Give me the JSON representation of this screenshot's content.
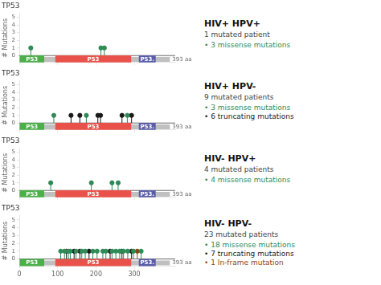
{
  "chart_data": [
    {
      "type": "lollipop",
      "title": "TP53",
      "ylabel": "# Mutations",
      "xlim": [
        0,
        407
      ],
      "xticks": [
        0,
        100,
        200,
        300
      ],
      "ylim": [
        -0.9,
        5.5
      ],
      "yticks": [
        0,
        1,
        2,
        3,
        4,
        5
      ],
      "grid": false,
      "tick_labels": "y",
      "hline": 0,
      "protein": {
        "start": 0,
        "end": 393,
        "y": -0.5,
        "color": "#c0c0c0",
        "label": "393 aa",
        "domains": [
          {
            "start": 1,
            "end": 65,
            "color": "#4daf4a",
            "label": "P53",
            "label_color": "white"
          },
          {
            "start": 94,
            "end": 292,
            "color": "#e8524a",
            "label": "P53",
            "label_color": "white"
          },
          {
            "start": 312,
            "end": 356,
            "color": "#5b5ea6",
            "label": "P53.",
            "label_color": "white"
          }
        ]
      },
      "series": [
        {
          "color": "#2e8b57",
          "marker": "circle",
          "x": [
            30,
            213,
            222
          ],
          "values": [
            1.0,
            1.0,
            1.0
          ]
        }
      ],
      "group": "HIV+ HPV+",
      "subtitle": "1 mutated patient",
      "annotations": [
        {
          "text": "• 3 missense mutations",
          "color": "#2e8b57"
        }
      ]
    },
    {
      "type": "lollipop",
      "title": "TP53",
      "ylabel": "# Mutations",
      "xlim": [
        0,
        407
      ],
      "xticks": [
        0,
        100,
        200,
        300
      ],
      "ylim": [
        -0.9,
        5.5
      ],
      "yticks": [
        0,
        1,
        2,
        3,
        4,
        5
      ],
      "grid": false,
      "tick_labels": "y",
      "hline": 0,
      "protein": {
        "start": 0,
        "end": 393,
        "y": -0.5,
        "color": "#c0c0c0",
        "label": "393 aa",
        "domains": [
          {
            "start": 1,
            "end": 65,
            "color": "#4daf4a",
            "label": "P53",
            "label_color": "white"
          },
          {
            "start": 94,
            "end": 292,
            "color": "#e8524a",
            "label": "P53",
            "label_color": "white"
          },
          {
            "start": 312,
            "end": 356,
            "color": "#5b5ea6",
            "label": "P53.",
            "label_color": "white"
          }
        ]
      },
      "series": [
        {
          "color": "#2e8b57",
          "marker": "circle",
          "x": [
            90,
            175,
            282
          ],
          "values": [
            1.0,
            1.0,
            1.0
          ]
        },
        {
          "color": "#1a1a1a",
          "marker": "circle",
          "x": [
            135,
            158,
            205,
            212,
            268,
            293
          ],
          "values": [
            1.0,
            1.0,
            1.0,
            1.0,
            1.0,
            1.0
          ]
        }
      ],
      "group": "HIV+ HPV-",
      "subtitle": "9 mutated patients",
      "annotations": [
        {
          "text": "• 3 missense mutations",
          "color": "#2e8b57"
        },
        {
          "text": "• 6 truncating mutations",
          "color": "#1a1a1a"
        }
      ]
    },
    {
      "type": "lollipop",
      "title": "TP53",
      "ylabel": "# Mutations",
      "xlim": [
        0,
        407
      ],
      "xticks": [
        0,
        100,
        200,
        300
      ],
      "ylim": [
        -0.9,
        5.5
      ],
      "yticks": [
        0,
        1,
        2,
        3,
        4,
        5
      ],
      "grid": false,
      "tick_labels": "y",
      "hline": 0,
      "protein": {
        "start": 0,
        "end": 393,
        "y": -0.5,
        "color": "#c0c0c0",
        "label": "393 aa",
        "domains": [
          {
            "start": 1,
            "end": 65,
            "color": "#4daf4a",
            "label": "P53",
            "label_color": "white"
          },
          {
            "start": 94,
            "end": 292,
            "color": "#e8524a",
            "label": "P53",
            "label_color": "white"
          },
          {
            "start": 312,
            "end": 356,
            "color": "#5b5ea6",
            "label": "P53.",
            "label_color": "white"
          }
        ]
      },
      "series": [
        {
          "color": "#2e8b57",
          "marker": "circle",
          "x": [
            82,
            188,
            242,
            258
          ],
          "values": [
            1.0,
            1.0,
            1.0,
            1.0
          ]
        }
      ],
      "group": "HIV- HPV+",
      "subtitle": "4 mutated patients",
      "annotations": [
        {
          "text": "• 4 missense mutations",
          "color": "#2e8b57"
        }
      ]
    },
    {
      "type": "lollipop",
      "title": "TP53",
      "ylabel": "# Mutations",
      "xlim": [
        0,
        407
      ],
      "xticks": [
        0,
        100,
        200,
        300
      ],
      "ylim": [
        -0.9,
        5.5
      ],
      "yticks": [
        0,
        1,
        2,
        3,
        4,
        5
      ],
      "grid": false,
      "hline": 0,
      "protein": {
        "start": 0,
        "end": 393,
        "y": -0.5,
        "color": "#c0c0c0",
        "label": "393 aa",
        "domains": [
          {
            "start": 1,
            "end": 65,
            "color": "#4daf4a",
            "label": "P53",
            "label_color": "white"
          },
          {
            "start": 94,
            "end": 292,
            "color": "#e8524a",
            "label": "P53",
            "label_color": "white"
          },
          {
            "start": 312,
            "end": 356,
            "color": "#5b5ea6",
            "label": "P53.",
            "label_color": "white"
          }
        ]
      },
      "series": [
        {
          "color": "#2e8b57",
          "marker": "circle",
          "x": [
            108,
            118,
            128,
            133,
            148,
            163,
            172,
            192,
            203,
            218,
            226,
            242,
            252,
            262,
            272,
            283,
            298,
            318
          ],
          "values": [
            1.0,
            1.0,
            1.0,
            1.0,
            1.0,
            1.0,
            1.0,
            1.0,
            1.0,
            1.0,
            1.0,
            1.0,
            1.0,
            1.0,
            1.0,
            1.0,
            1.0,
            1.0
          ]
        },
        {
          "color": "#1a1a1a",
          "marker": "circle",
          "x": [
            123,
            143,
            158,
            182,
            237,
            268,
            293
          ],
          "values": [
            1.0,
            1.0,
            1.0,
            1.0,
            1.0,
            1.0,
            1.0
          ]
        },
        {
          "color": "#8B4513",
          "marker": "circle",
          "x": [
            308
          ],
          "values": [
            1.0
          ]
        }
      ],
      "group": "HIV- HPV-",
      "subtitle": "23 mutated patients",
      "annotations": [
        {
          "text": "• 18 missense mutations",
          "color": "#2e8b57"
        },
        {
          "text": "• 7 truncating mutations",
          "color": "#1a1a1a"
        },
        {
          "text": "• 1 In-frame mutation",
          "color": "#8B4513"
        }
      ]
    }
  ]
}
